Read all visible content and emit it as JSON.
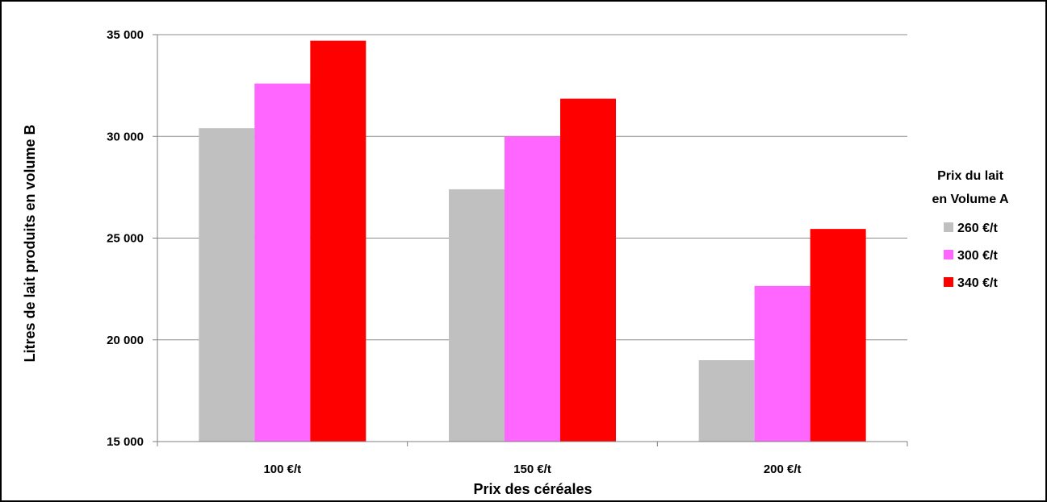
{
  "chart_data": {
    "type": "bar",
    "title": "",
    "xlabel": "Prix des céréales",
    "ylabel": "Litres de lait produits en volume B",
    "categories": [
      "100 €/t",
      "150 €/t",
      "200 €/t"
    ],
    "series": [
      {
        "name": "260 €/t",
        "color": "#c0c0c0",
        "values": [
          30400,
          27400,
          19000
        ]
      },
      {
        "name": "300 €/t",
        "color": "#ff66ff",
        "values": [
          32600,
          30000,
          22650
        ]
      },
      {
        "name": "340 €/t",
        "color": "#ff0000",
        "values": [
          34700,
          31850,
          25450
        ]
      }
    ],
    "ylim": [
      15000,
      35000
    ],
    "yticks": [
      15000,
      20000,
      25000,
      30000,
      35000
    ],
    "ytick_labels": [
      "15 000",
      "20 000",
      "25 000",
      "30 000",
      "35 000"
    ],
    "grid": true,
    "legend": {
      "title_line1": "Prix du lait",
      "title_line2": "en Volume A",
      "placement": "right"
    }
  }
}
